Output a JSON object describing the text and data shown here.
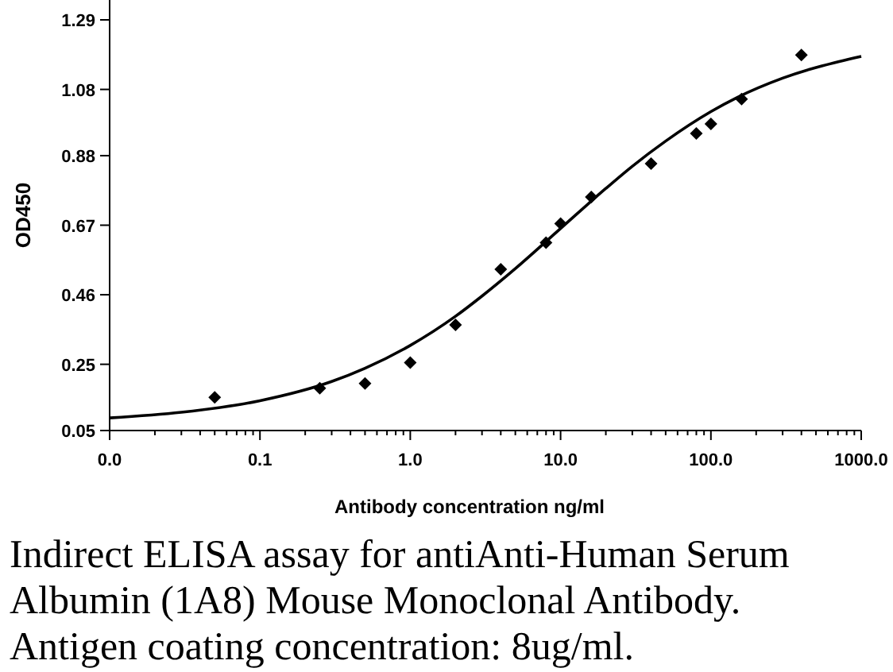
{
  "chart_data": {
    "type": "scatter",
    "xlabel": "Antibody concentration  ng/ml",
    "ylabel": "OD450",
    "log": "x",
    "grid": false,
    "xlim": [
      0.01,
      1000
    ],
    "xticks": [
      {
        "value": 0.01,
        "label": "0.0"
      },
      {
        "value": 0.1,
        "label": "0.1"
      },
      {
        "value": 1,
        "label": "1.0"
      },
      {
        "value": 10,
        "label": "10.0"
      },
      {
        "value": 100,
        "label": "100.0"
      },
      {
        "value": 1000,
        "label": "1000.0"
      }
    ],
    "ylim": [
      0.05,
      1.35
    ],
    "yticks": [
      0.05,
      0.25,
      0.46,
      0.67,
      0.88,
      1.08,
      1.29
    ],
    "series": [
      {
        "marker": "diamond",
        "color": "#000000",
        "x": [
          0.05,
          0.25,
          0.5,
          1,
          2,
          4,
          8,
          10,
          16,
          40,
          80,
          100,
          160,
          400
        ],
        "values": [
          0.15,
          0.178,
          0.192,
          0.255,
          0.369,
          0.537,
          0.617,
          0.675,
          0.755,
          0.856,
          0.947,
          0.976,
          1.051,
          1.184
        ]
      },
      {
        "type": "line",
        "marker": "none",
        "color": "#000000",
        "x": [
          0.01,
          0.03,
          0.1,
          0.3,
          0.5,
          1,
          2,
          3,
          5,
          10,
          20,
          30,
          50,
          100,
          150,
          300,
          1000
        ],
        "values": [
          0.088,
          0.105,
          0.14,
          0.198,
          0.238,
          0.307,
          0.395,
          0.456,
          0.539,
          0.66,
          0.781,
          0.848,
          0.924,
          1.013,
          1.056,
          1.114,
          1.18
        ]
      }
    ],
    "annotations": [
      "Indirect ELISA assay for antiAnti-Human Serum",
      "Albumin (1A8) Mouse Monoclonal Antibody.",
      "Antigen coating concentration: 8ug/ml."
    ]
  }
}
